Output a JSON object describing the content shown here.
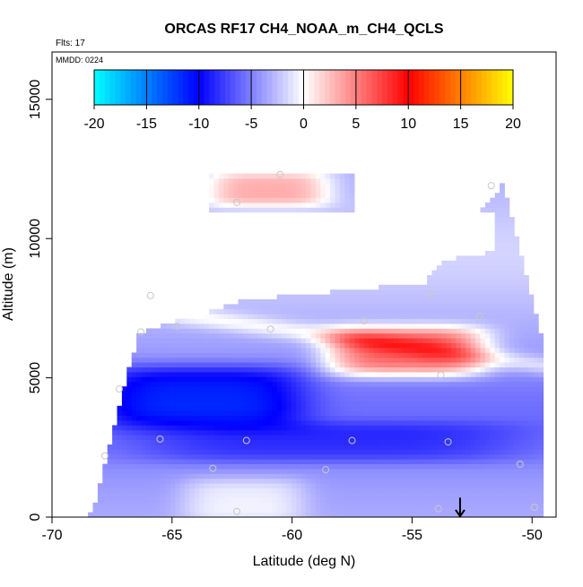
{
  "chart_data": {
    "type": "heatmap",
    "title": "ORCAS RF17 CH4_NOAA_m_CH4_QCLS",
    "subtitle": "Flts: 17",
    "annotation": "MMDD: 0224",
    "xlabel": "Latitude (deg N)",
    "ylabel": "Altitude (m)",
    "xlim": [
      -70,
      -49
    ],
    "ylim": [
      0,
      16700
    ],
    "x_ticks": [
      -70,
      -65,
      -60,
      -55,
      -50
    ],
    "x_tick_labels": [
      "-70",
      "-65",
      "-60",
      "-55",
      "-50"
    ],
    "y_ticks": [
      0,
      5000,
      10000,
      15000
    ],
    "y_tick_labels": [
      "0",
      "5000",
      "10000",
      "15000"
    ],
    "colorbar": {
      "range": [
        -20,
        20
      ],
      "ticks": [
        -20,
        -15,
        -10,
        -5,
        0,
        5,
        10,
        15,
        20
      ],
      "tick_labels": [
        "-20",
        "-15",
        "-10",
        "-5",
        "0",
        "5",
        "10",
        "15",
        "20"
      ],
      "placement": "top-inside",
      "colors": [
        "#00ffff",
        "#0000ff",
        "#ffffff",
        "#ff0000",
        "#ffff00"
      ]
    },
    "data_extent": {
      "lat_min": -68.5,
      "lat_max": -49.6,
      "alt_max_ceiling": 12200,
      "note": "rasterized CH4 difference field; mostly negative (blue) with a positive band near 5500-6500 m"
    },
    "field_features": [
      {
        "name": "strong-negative-core",
        "lat": [
          -67.5,
          -60
        ],
        "alt": [
          3500,
          5200
        ],
        "value": -9
      },
      {
        "name": "negative-lower-band",
        "lat": [
          -66,
          -51
        ],
        "alt": [
          2200,
          3200
        ],
        "value": -6
      },
      {
        "name": "positive-band",
        "lat": [
          -58,
          -52.5
        ],
        "alt": [
          5300,
          6600
        ],
        "value": 7
      },
      {
        "name": "upper-weak-positive",
        "lat": [
          -63,
          -59
        ],
        "alt": [
          11400,
          12200
        ],
        "value": 3
      },
      {
        "name": "near-surface-white",
        "lat": [
          -64,
          -60
        ],
        "alt": [
          0,
          1200
        ],
        "value": 0
      }
    ],
    "sample_points": [
      {
        "lat": -60.5,
        "alt": 12300
      },
      {
        "lat": -62.3,
        "alt": 11300
      },
      {
        "lat": -51.7,
        "alt": 11900
      },
      {
        "lat": -65.9,
        "alt": 7950
      },
      {
        "lat": -54.2,
        "alt": 8000
      },
      {
        "lat": -52.2,
        "alt": 7200
      },
      {
        "lat": -64.8,
        "alt": 6850
      },
      {
        "lat": -60.9,
        "alt": 6750
      },
      {
        "lat": -66.3,
        "alt": 6650
      },
      {
        "lat": -57.0,
        "alt": 7050
      },
      {
        "lat": -53.8,
        "alt": 5100
      },
      {
        "lat": -67.2,
        "alt": 4600
      },
      {
        "lat": -65.5,
        "alt": 2800
      },
      {
        "lat": -61.9,
        "alt": 2750
      },
      {
        "lat": -57.5,
        "alt": 2750
      },
      {
        "lat": -53.5,
        "alt": 2700
      },
      {
        "lat": -67.8,
        "alt": 2200
      },
      {
        "lat": -63.3,
        "alt": 1750
      },
      {
        "lat": -58.6,
        "alt": 1700
      },
      {
        "lat": -50.5,
        "alt": 1900
      },
      {
        "lat": -62.3,
        "alt": 200
      },
      {
        "lat": -53.9,
        "alt": 300
      },
      {
        "lat": -49.9,
        "alt": 350
      }
    ],
    "arrow_marker": {
      "lat": -53,
      "alt_top": 700,
      "alt_bottom": 0
    }
  }
}
